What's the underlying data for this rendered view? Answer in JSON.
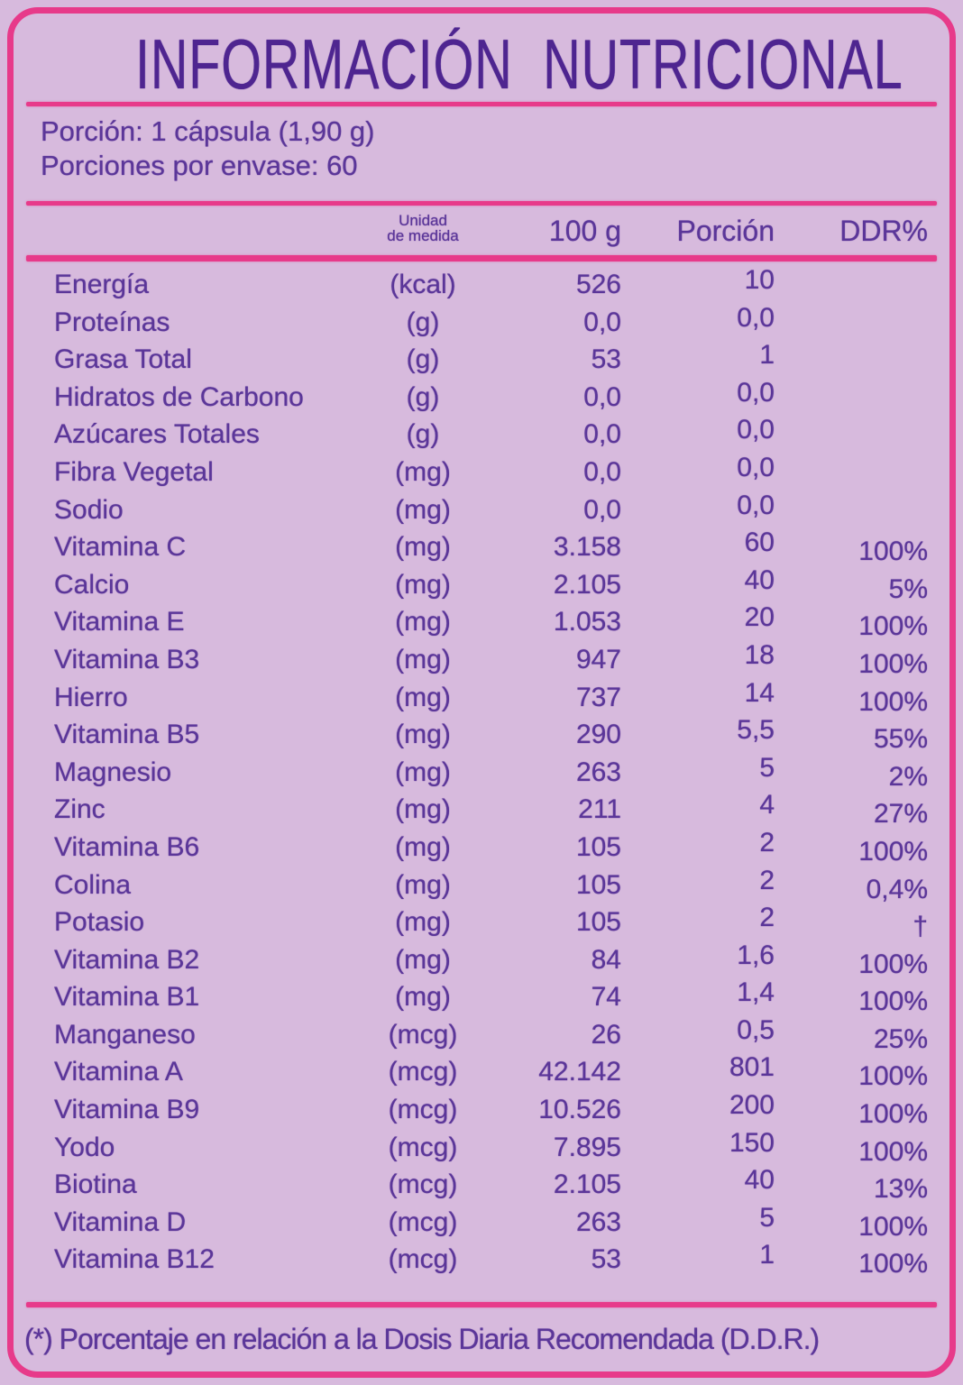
{
  "label": {
    "title": "INFORMACIÓN  NUTRICIONAL",
    "serving_line1": "Porción: 1 cápsula (1,90 g)",
    "serving_line2": "Porciones por envase: 60",
    "footnote": "(*) Porcentaje en relación a la Dosis Diaria Recomendada (D.D.R.)"
  },
  "table": {
    "headers": {
      "unit_line1": "Unidad",
      "unit_line2": "de medida",
      "per100": "100 g",
      "portion": "Porción",
      "ddr": "DDR%"
    },
    "rows": [
      {
        "name": "Energía",
        "unit": "(kcal)",
        "per100": "526",
        "portion": "10",
        "ddr": ""
      },
      {
        "name": "Proteínas",
        "unit": "(g)",
        "per100": "0,0",
        "portion": "0,0",
        "ddr": ""
      },
      {
        "name": "Grasa Total",
        "unit": "(g)",
        "per100": "53",
        "portion": "1",
        "ddr": ""
      },
      {
        "name": "Hidratos de Carbono",
        "unit": "(g)",
        "per100": "0,0",
        "portion": "0,0",
        "ddr": ""
      },
      {
        "name": "Azúcares Totales",
        "unit": "(g)",
        "per100": "0,0",
        "portion": "0,0",
        "ddr": ""
      },
      {
        "name": "Fibra Vegetal",
        "unit": "(mg)",
        "per100": "0,0",
        "portion": "0,0",
        "ddr": ""
      },
      {
        "name": "Sodio",
        "unit": "(mg)",
        "per100": "0,0",
        "portion": "0,0",
        "ddr": ""
      },
      {
        "name": "Vitamina C",
        "unit": "(mg)",
        "per100": "3.158",
        "portion": "60",
        "ddr": "100%"
      },
      {
        "name": "Calcio",
        "unit": "(mg)",
        "per100": "2.105",
        "portion": "40",
        "ddr": "5%"
      },
      {
        "name": "Vitamina E",
        "unit": "(mg)",
        "per100": "1.053",
        "portion": "20",
        "ddr": "100%"
      },
      {
        "name": "Vitamina B3",
        "unit": "(mg)",
        "per100": "947",
        "portion": "18",
        "ddr": "100%"
      },
      {
        "name": "Hierro",
        "unit": "(mg)",
        "per100": "737",
        "portion": "14",
        "ddr": "100%"
      },
      {
        "name": "Vitamina B5",
        "unit": "(mg)",
        "per100": "290",
        "portion": "5,5",
        "ddr": "55%"
      },
      {
        "name": "Magnesio",
        "unit": "(mg)",
        "per100": "263",
        "portion": "5",
        "ddr": "2%"
      },
      {
        "name": "Zinc",
        "unit": "(mg)",
        "per100": "211",
        "portion": "4",
        "ddr": "27%"
      },
      {
        "name": "Vitamina B6",
        "unit": "(mg)",
        "per100": "105",
        "portion": "2",
        "ddr": "100%"
      },
      {
        "name": "Colina",
        "unit": "(mg)",
        "per100": "105",
        "portion": "2",
        "ddr": "0,4%"
      },
      {
        "name": "Potasio",
        "unit": "(mg)",
        "per100": "105",
        "portion": "2",
        "ddr": "†"
      },
      {
        "name": "Vitamina B2",
        "unit": "(mg)",
        "per100": "84",
        "portion": "1,6",
        "ddr": "100%"
      },
      {
        "name": "Vitamina B1",
        "unit": "(mg)",
        "per100": "74",
        "portion": "1,4",
        "ddr": "100%"
      },
      {
        "name": "Manganeso",
        "unit": "(mcg)",
        "per100": "26",
        "portion": "0,5",
        "ddr": "25%"
      },
      {
        "name": "Vitamina A",
        "unit": "(mcg)",
        "per100": "42.142",
        "portion": "801",
        "ddr": "100%"
      },
      {
        "name": "Vitamina B9",
        "unit": "(mcg)",
        "per100": "10.526",
        "portion": "200",
        "ddr": "100%"
      },
      {
        "name": "Yodo",
        "unit": "(mcg)",
        "per100": "7.895",
        "portion": "150",
        "ddr": "100%"
      },
      {
        "name": "Biotina",
        "unit": "(mcg)",
        "per100": "2.105",
        "portion": "40",
        "ddr": "13%"
      },
      {
        "name": "Vitamina D",
        "unit": "(mcg)",
        "per100": "263",
        "portion": "5",
        "ddr": "100%"
      },
      {
        "name": "Vitamina B12",
        "unit": "(mcg)",
        "per100": "53",
        "portion": "1",
        "ddr": "100%"
      }
    ]
  },
  "colors": {
    "background": "#d7badd",
    "accent_pink": "#e73a8a",
    "text_purple": "#5b3699",
    "title_purple": "#4e2590"
  }
}
